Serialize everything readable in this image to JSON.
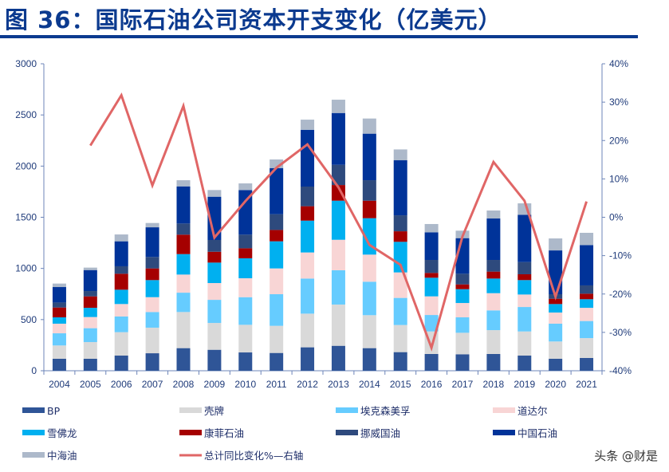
{
  "title": "图 36：国际石油公司资本开支变化（亿美元）",
  "watermark": "头条 @财是",
  "chart_data": {
    "type": "bar",
    "stacked": true,
    "title": "",
    "categories": [
      "2004",
      "2005",
      "2006",
      "2007",
      "2008",
      "2009",
      "2010",
      "2011",
      "2012",
      "2013",
      "2014",
      "2015",
      "2016",
      "2017",
      "2018",
      "2019",
      "2020",
      "2021"
    ],
    "ylim": [
      0,
      3000
    ],
    "yticks": [
      "0",
      "500",
      "1000",
      "1500",
      "2000",
      "2500",
      "3000"
    ],
    "y2lim": [
      -40,
      40
    ],
    "y2ticks": [
      "-40%",
      "-30%",
      "-20%",
      "-10%",
      "0%",
      "10%",
      "20%",
      "30%",
      "40%"
    ],
    "grid": false,
    "legend_position": "bottom",
    "series": [
      {
        "name": "BP",
        "color": "#2f5597",
        "values": [
          117,
          117,
          148,
          171,
          221,
          205,
          179,
          174,
          229,
          244,
          221,
          182,
          164,
          161,
          164,
          148,
          117,
          125
        ]
      },
      {
        "name": "壳牌",
        "color": "#d9d9d9",
        "values": [
          130,
          163,
          229,
          250,
          353,
          262,
          270,
          265,
          329,
          403,
          322,
          265,
          220,
          210,
          233,
          236,
          169,
          194
        ]
      },
      {
        "name": "埃克森美孚",
        "color": "#66ccff",
        "values": [
          119,
          136,
          153,
          153,
          189,
          226,
          270,
          309,
          343,
          335,
          327,
          265,
          161,
          151,
          193,
          239,
          174,
          167
        ]
      },
      {
        "name": "道达尔",
        "color": "#f8d5d5",
        "values": [
          94,
          109,
          122,
          145,
          177,
          164,
          185,
          252,
          255,
          298,
          265,
          249,
          182,
          140,
          168,
          122,
          109,
          129
        ]
      },
      {
        "name": "雪佛龙",
        "color": "#00b0f0",
        "values": [
          62,
          90,
          140,
          167,
          200,
          200,
          195,
          265,
          311,
          382,
          356,
          299,
          182,
          135,
          143,
          141,
          83,
          84
        ]
      },
      {
        "name": "康菲石油",
        "color": "#a50000",
        "values": [
          96,
          112,
          156,
          114,
          190,
          106,
          98,
          111,
          141,
          153,
          171,
          103,
          47,
          47,
          68,
          57,
          52,
          54
        ]
      },
      {
        "name": "挪威国油",
        "color": "#2e4a7d",
        "values": [
          49,
          52,
          73,
          112,
          109,
          115,
          133,
          154,
          192,
          198,
          200,
          156,
          127,
          104,
          114,
          119,
          44,
          81
        ]
      },
      {
        "name": "中国石油",
        "color": "#003399",
        "values": [
          151,
          205,
          244,
          290,
          363,
          423,
          436,
          451,
          555,
          506,
          455,
          538,
          270,
          348,
          405,
          462,
          428,
          394
        ]
      },
      {
        "name": "中海油",
        "color": "#adb9ca",
        "values": [
          34,
          24,
          67,
          42,
          60,
          65,
          65,
          84,
          99,
          130,
          148,
          106,
          81,
          73,
          78,
          112,
          117,
          120
        ]
      }
    ],
    "line_series": {
      "name": "总计同比变化%—右轴",
      "axis": "right",
      "color": "#e06666",
      "values": [
        null,
        18.7,
        31.8,
        8.3,
        29,
        -5.3,
        4.2,
        12.9,
        19,
        7.8,
        -7.2,
        -12.4,
        -34,
        -5,
        14.4,
        4.3,
        -20.7,
        4.1
      ]
    }
  }
}
